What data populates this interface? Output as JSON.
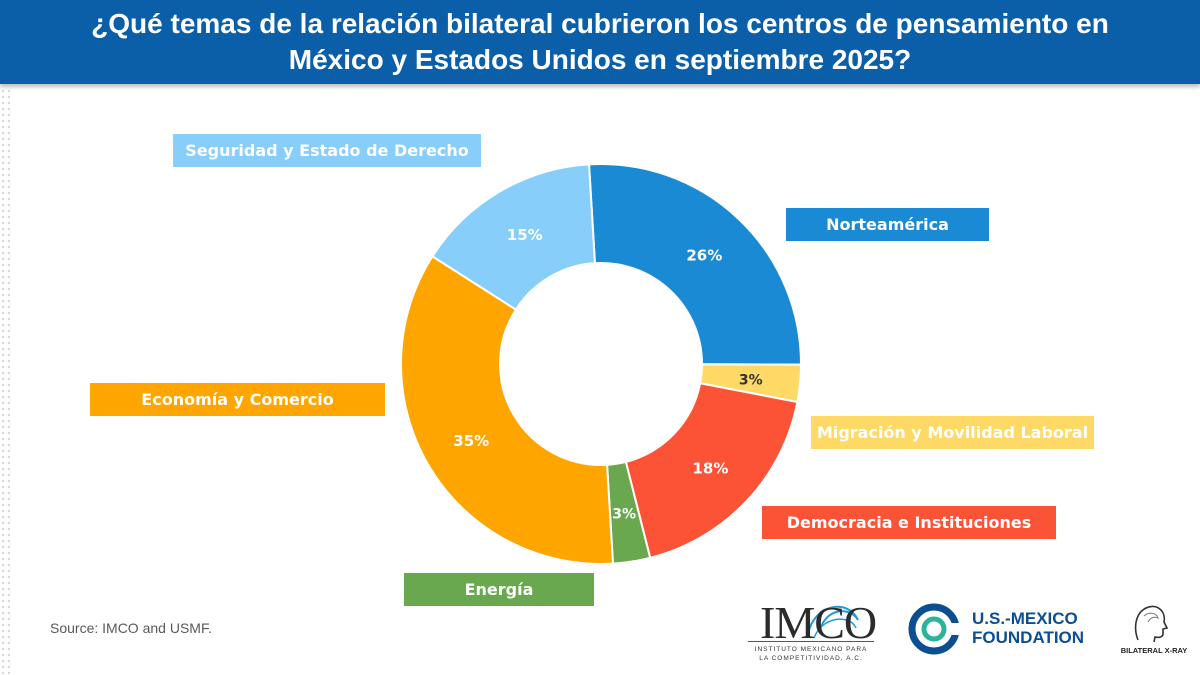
{
  "header": {
    "title_line1": "¿Qué temas de la relación bilateral cubrieron los centros de pensamiento en",
    "title_line2": "México y Estados Unidos en septiembre 2025?"
  },
  "chart_data": {
    "type": "pie",
    "title": "¿Qué temas de la relación bilateral cubrieron los centros de pensamiento en México y Estados Unidos en septiembre 2025?",
    "series": [
      {
        "name": "Norteamérica",
        "value": 26,
        "label": "26%",
        "color": "#1a8ad4"
      },
      {
        "name": "Migración y Movilidad Laboral",
        "value": 3,
        "label": "3%",
        "color": "#ffd966"
      },
      {
        "name": "Democracia e Instituciones",
        "value": 18,
        "label": "18%",
        "color": "#fc5236"
      },
      {
        "name": "Energía",
        "value": 3,
        "label": "3%",
        "color": "#6aa84f"
      },
      {
        "name": "Economía y Comercio",
        "value": 35,
        "label": "35%",
        "color": "#ffa500"
      },
      {
        "name": "Seguridad y Estado de Derecho",
        "value": 15,
        "label": "15%",
        "color": "#87cefa"
      }
    ],
    "hole": "donut"
  },
  "source": "Source: IMCO and USMF.",
  "logos": {
    "imco": {
      "name": "IMCO",
      "subtitle_line1": "INSTITUTO MEXICANO PARA",
      "subtitle_line2": "LA COMPETITIVIDAD, A.C."
    },
    "usmf": {
      "line1": "U.S.-MEXICO",
      "line2": "FOUNDATION"
    },
    "bilateral": {
      "name": "BILATERAL X-RAY"
    }
  }
}
